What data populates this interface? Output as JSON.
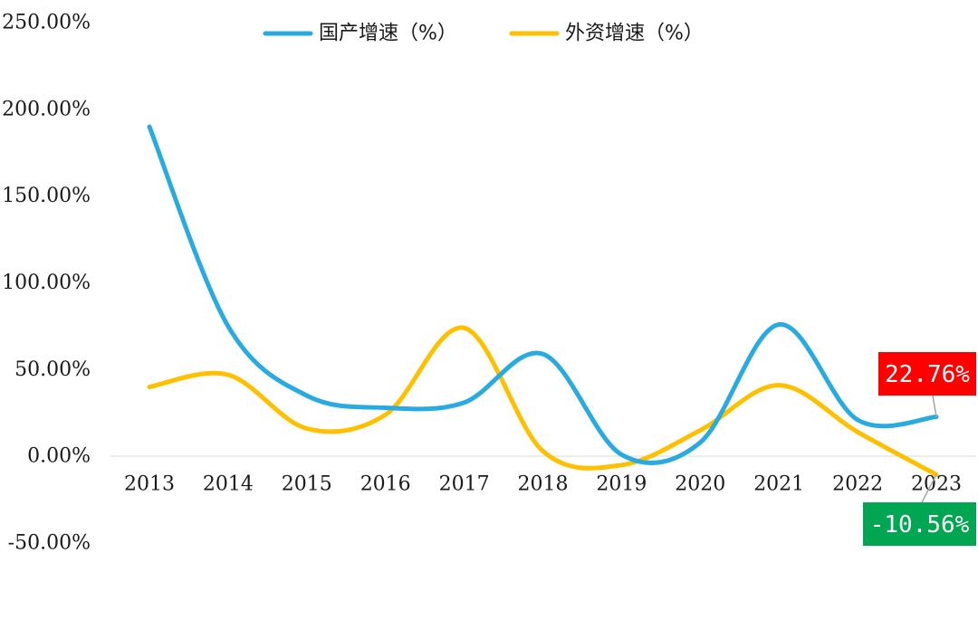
{
  "chart_data": {
    "type": "line",
    "categories": [
      "2013",
      "2014",
      "2015",
      "2016",
      "2017",
      "2018",
      "2019",
      "2020",
      "2021",
      "2022",
      "2023"
    ],
    "series": [
      {
        "name": "国产增速（%）",
        "color": "#29abe2",
        "values": [
          190,
          75,
          35,
          28,
          31,
          59,
          1,
          8,
          76,
          21,
          22.76
        ]
      },
      {
        "name": "外资增速（%）",
        "color": "#ffc000",
        "values": [
          40,
          47,
          16,
          24,
          74,
          3,
          -5,
          15,
          41,
          14,
          -10.56
        ]
      }
    ],
    "yticks": [
      "250.00%",
      "200.00%",
      "150.00%",
      "100.00%",
      "50.00%",
      "0.00%",
      "-50.00%"
    ],
    "ylim": [
      -50,
      250
    ],
    "legend_position": "top",
    "grid": false,
    "callouts": [
      {
        "label": "22.76%",
        "series": 0,
        "index": 10,
        "color": "#ff0000"
      },
      {
        "label": "-10.56%",
        "series": 1,
        "index": 10,
        "color": "#00a651"
      }
    ]
  }
}
